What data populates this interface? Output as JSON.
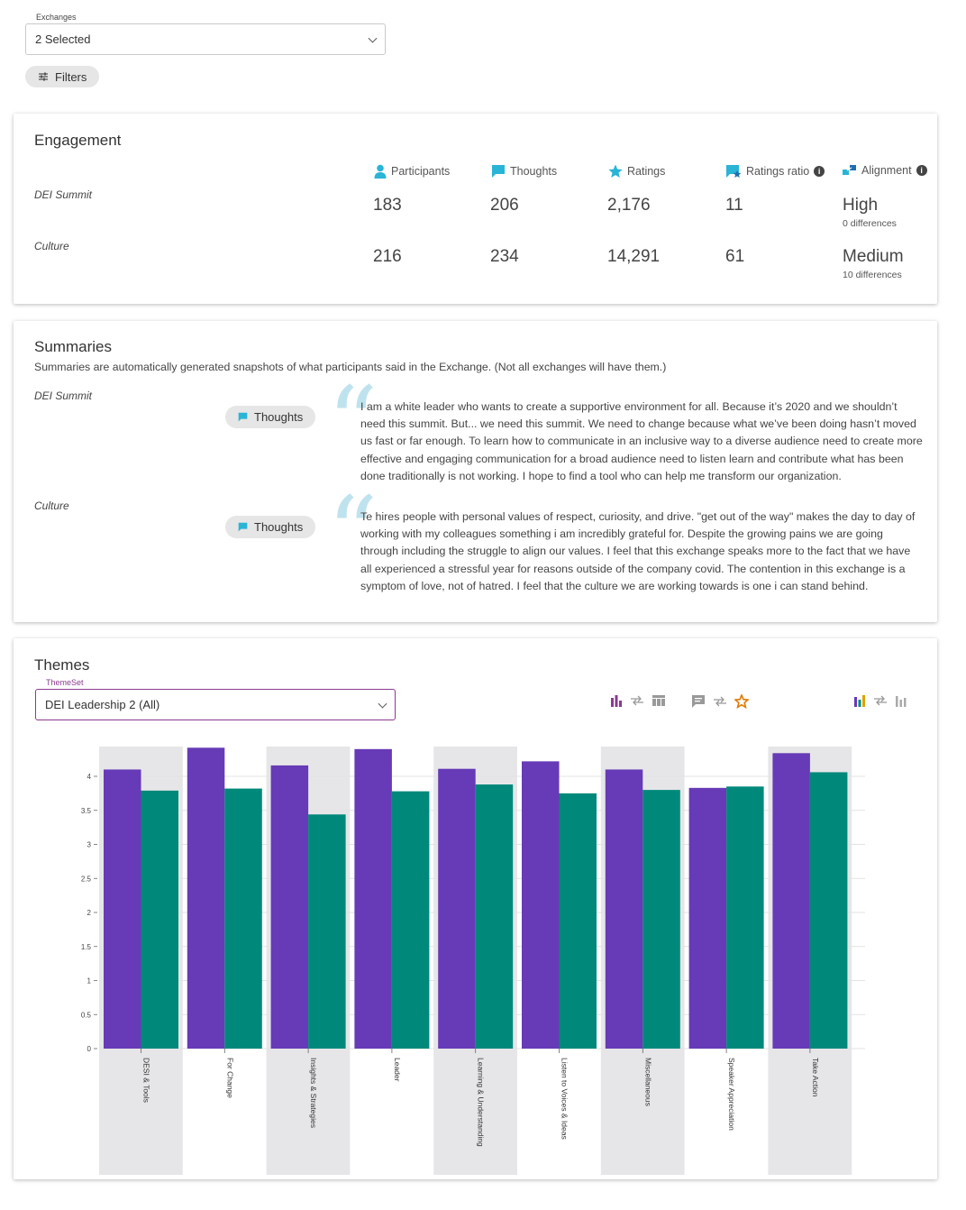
{
  "exchanges": {
    "label": "Exchanges",
    "value": "2 Selected"
  },
  "filters": {
    "label": "Filters"
  },
  "engagement": {
    "title": "Engagement",
    "columns": [
      "Participants",
      "Thoughts",
      "Ratings",
      "Ratings ratio",
      "Alignment"
    ],
    "rows": [
      {
        "label": "DEI Summit",
        "participants": "183",
        "thoughts": "206",
        "ratings": "2,176",
        "ratio": "11",
        "alignment": "High",
        "differences": "0 differences"
      },
      {
        "label": "Culture",
        "participants": "216",
        "thoughts": "234",
        "ratings": "14,291",
        "ratio": "61",
        "alignment": "Medium",
        "differences": "10 differences"
      }
    ]
  },
  "summaries": {
    "title": "Summaries",
    "subtitle": "Summaries are automatically generated snapshots of what participants said in the Exchange. (Not all exchanges will have them.)",
    "rows": [
      {
        "label": "DEI Summit",
        "chip": "Thoughts",
        "text": "I am a white leader who wants to create a supportive environment for all. Because it’s 2020 and we shouldn’t need this summit. But... we need this summit. We need to change because what we’ve been doing hasn’t moved us fast or far enough. To learn how to communicate in an inclusive way to a diverse audience need to create more effective and engaging communication for a broad audience need to listen learn and contribute what has been done traditionally is not working. I hope to find a tool who can help me transform our organization."
      },
      {
        "label": "Culture",
        "chip": "Thoughts",
        "text": "Te hires people with personal values of respect, curiosity, and drive. \"get out of the way\" makes the day to day of working with my colleagues something i am incredibly grateful for. Despite the growing pains we are going through including the struggle to align our values. I feel that this exchange speaks more to the fact that we have all experienced a stressful year for reasons outside of the company covid. The contention in this exchange is a symptom of love, not of hatred. I feel that the culture we are working towards is one i can stand behind."
      }
    ]
  },
  "themes": {
    "title": "Themes",
    "themeset_label": "ThemeSet",
    "themeset_value": "DEI Leadership 2 (All)"
  },
  "colors": {
    "accent": "#8a3a8f",
    "teal_icon": "#2ab4d6",
    "purple": "#673ab7",
    "green": "#00897b",
    "band": "#e6e6e8"
  },
  "chart_data": {
    "type": "bar",
    "categories": [
      "DESI & Tools",
      "For Change",
      "Insights & Strategies",
      "Leader",
      "Learning & Understanding",
      "Listen to Voices & Ideas",
      "Miscellaneous",
      "Speaker Appreciation",
      "Take Action"
    ],
    "series": [
      {
        "values": [
          4.1,
          4.42,
          4.16,
          4.4,
          4.11,
          4.22,
          4.1,
          3.83,
          4.34
        ]
      },
      {
        "values": [
          3.79,
          3.82,
          3.44,
          3.78,
          3.88,
          3.75,
          3.8,
          3.85,
          4.06
        ]
      }
    ],
    "yticks": [
      "0",
      "0.5",
      "1",
      "1.5",
      "2",
      "2.5",
      "3",
      "3.5",
      "4"
    ],
    "ylim": [
      0,
      4.5
    ],
    "grid": true
  }
}
